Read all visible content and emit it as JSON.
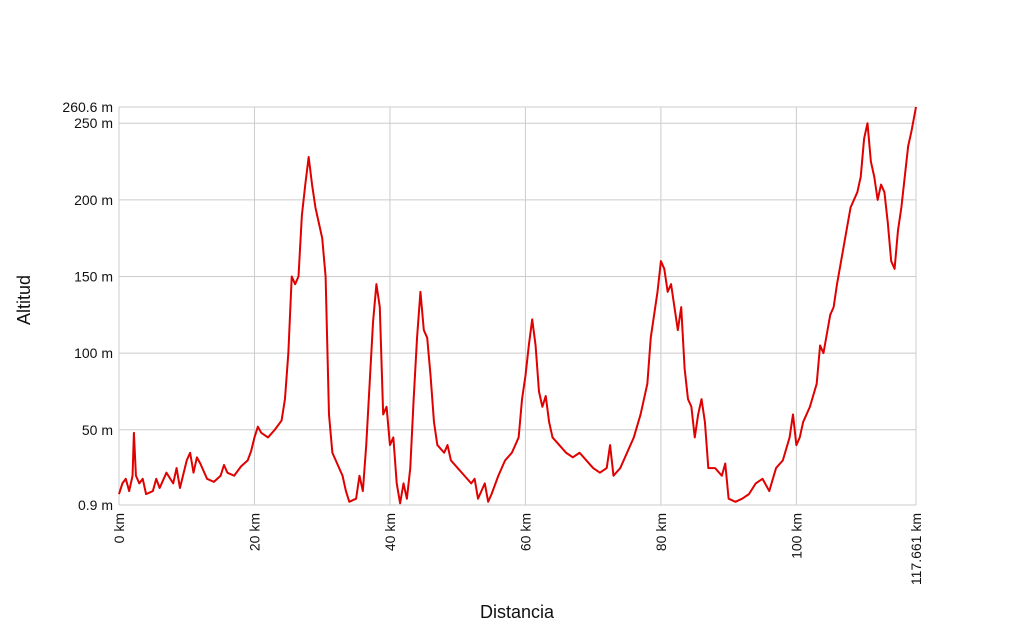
{
  "chart_data": {
    "type": "line",
    "x_label": "Distancia",
    "y_label": "Altitud",
    "color": "#e00000",
    "grid": true,
    "xlim": [
      0,
      117.661
    ],
    "ylim": [
      0.9,
      260.6
    ],
    "xticks": [
      {
        "value": 0,
        "label": "0 km"
      },
      {
        "value": 20,
        "label": "20 km"
      },
      {
        "value": 40,
        "label": "40 km"
      },
      {
        "value": 60,
        "label": "60 km"
      },
      {
        "value": 80,
        "label": "80 km"
      },
      {
        "value": 100,
        "label": "100 km"
      },
      {
        "value": 117.661,
        "label": "117.661 km"
      }
    ],
    "yticks": [
      {
        "value": 0.9,
        "label": "0.9 m"
      },
      {
        "value": 50,
        "label": "50 m"
      },
      {
        "value": 100,
        "label": "100 m"
      },
      {
        "value": 150,
        "label": "150 m"
      },
      {
        "value": 200,
        "label": "200 m"
      },
      {
        "value": 250,
        "label": "250 m"
      },
      {
        "value": 260.6,
        "label": "260.6 m"
      }
    ],
    "x": [
      0,
      0.5,
      1,
      1.5,
      2,
      2.2,
      2.5,
      3,
      3.5,
      4,
      5,
      5.5,
      6,
      7,
      8,
      8.5,
      9,
      10,
      10.5,
      11,
      11.5,
      12,
      13,
      14,
      15,
      15.5,
      16,
      17,
      18,
      19,
      19.5,
      20,
      20.5,
      21,
      22,
      23,
      24,
      24.5,
      25,
      25.5,
      26,
      26.5,
      27,
      27.5,
      28,
      28.5,
      29,
      29.5,
      30,
      30.5,
      31,
      31.5,
      32,
      33,
      33.5,
      34,
      35,
      35.5,
      36,
      36.5,
      37,
      37.5,
      38,
      38.5,
      39,
      39.5,
      40,
      40.5,
      41,
      41.5,
      42,
      42.5,
      43,
      43.5,
      44,
      44.5,
      45,
      45.5,
      46,
      46.5,
      47,
      48,
      48.5,
      49,
      50,
      51,
      52,
      52.5,
      53,
      54,
      54.5,
      55,
      56,
      57,
      58,
      59,
      59.5,
      60,
      60.5,
      61,
      61.5,
      62,
      62.5,
      63,
      63.5,
      64,
      65,
      66,
      67,
      68,
      69,
      70,
      71,
      72,
      72.5,
      73,
      74,
      75,
      76,
      77,
      78,
      78.5,
      79,
      79.5,
      80,
      80.5,
      81,
      81.5,
      82,
      82.5,
      83,
      83.5,
      84,
      84.5,
      85,
      85.5,
      86,
      86.5,
      87,
      88,
      89,
      89.5,
      90,
      91,
      92,
      93,
      94,
      95,
      96,
      97,
      98,
      99,
      99.5,
      100,
      100.5,
      101,
      102,
      103,
      103.5,
      104,
      105,
      105.5,
      106,
      107,
      108,
      109,
      109.5,
      110,
      110.5,
      111,
      111.5,
      112,
      112.5,
      113,
      113.5,
      114,
      114.5,
      115,
      115.5,
      116,
      116.5,
      117,
      117.661
    ],
    "values": [
      8,
      15,
      18,
      10,
      20,
      48,
      20,
      15,
      18,
      8,
      10,
      18,
      12,
      22,
      15,
      25,
      12,
      30,
      35,
      22,
      32,
      28,
      18,
      16,
      20,
      27,
      22,
      20,
      26,
      30,
      36,
      45,
      52,
      48,
      45,
      50,
      56,
      70,
      100,
      150,
      145,
      150,
      190,
      210,
      228,
      210,
      195,
      185,
      175,
      150,
      60,
      35,
      30,
      20,
      10,
      3,
      5,
      20,
      10,
      40,
      80,
      120,
      145,
      130,
      60,
      65,
      40,
      45,
      15,
      2,
      15,
      5,
      25,
      70,
      110,
      140,
      115,
      110,
      85,
      55,
      40,
      35,
      40,
      30,
      25,
      20,
      15,
      18,
      5,
      15,
      3,
      8,
      20,
      30,
      35,
      45,
      70,
      85,
      105,
      122,
      105,
      75,
      65,
      72,
      55,
      45,
      40,
      35,
      32,
      35,
      30,
      25,
      22,
      25,
      40,
      20,
      25,
      35,
      45,
      60,
      80,
      110,
      125,
      140,
      160,
      155,
      140,
      145,
      130,
      115,
      130,
      90,
      70,
      65,
      45,
      60,
      70,
      55,
      25,
      25,
      20,
      28,
      5,
      3,
      5,
      8,
      15,
      18,
      10,
      25,
      30,
      45,
      60,
      40,
      45,
      55,
      65,
      80,
      105,
      100,
      125,
      130,
      145,
      170,
      195,
      205,
      215,
      240,
      250,
      225,
      215,
      200,
      210,
      205,
      185,
      160,
      155,
      180,
      195,
      215,
      235,
      245,
      260.6
    ]
  }
}
